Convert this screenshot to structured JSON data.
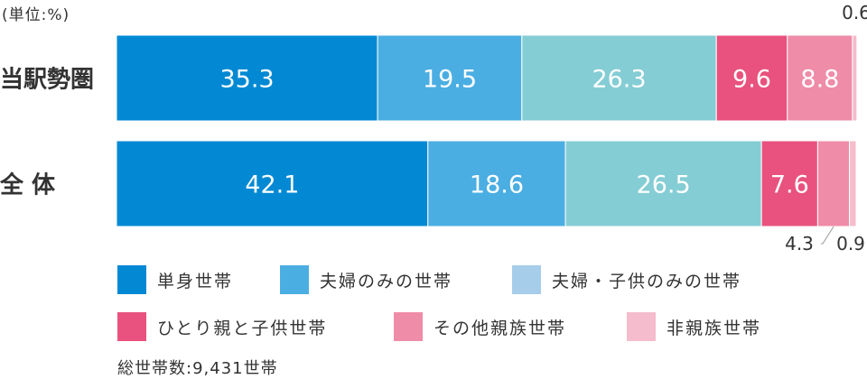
{
  "unit_label": "(単位:%)",
  "total_note": "総世帯数:9,431世帯",
  "legend": [
    {
      "label": "単身世帯",
      "color": "#0389d4"
    },
    {
      "label": "夫婦のみの世帯",
      "color": "#4baee2"
    },
    {
      "label": "夫婦・子供のみの世帯",
      "color": "#a6cdea"
    },
    {
      "label": "ひとり親と子供世帯",
      "color": "#e9527e"
    },
    {
      "label": "その他親族世帯",
      "color": "#ef8ca8"
    },
    {
      "label": "非親族世帯",
      "color": "#f4bccc"
    }
  ],
  "chart_data": {
    "type": "bar",
    "orientation": "horizontal",
    "stacked": true,
    "categories": [
      "当駅勢圏",
      "全 体"
    ],
    "series": [
      {
        "name": "単身世帯",
        "values": [
          35.3,
          42.1
        ],
        "color": "#0389d4"
      },
      {
        "name": "夫婦のみの世帯",
        "values": [
          19.5,
          18.6
        ],
        "color": "#4baee2"
      },
      {
        "name": "夫婦・子供のみの世帯",
        "values": [
          26.3,
          26.5
        ],
        "color": "#85cdd4"
      },
      {
        "name": "ひとり親と子供世帯",
        "values": [
          9.6,
          7.6
        ],
        "color": "#e9527e"
      },
      {
        "name": "その他親族世帯",
        "values": [
          8.8,
          4.3
        ],
        "color": "#ef8ca8"
      },
      {
        "name": "非親族世帯",
        "values": [
          0.6,
          0.9
        ],
        "color": "#f4bccc"
      }
    ],
    "xlim": [
      0,
      100
    ],
    "grid": false,
    "legend_position": "bottom"
  }
}
